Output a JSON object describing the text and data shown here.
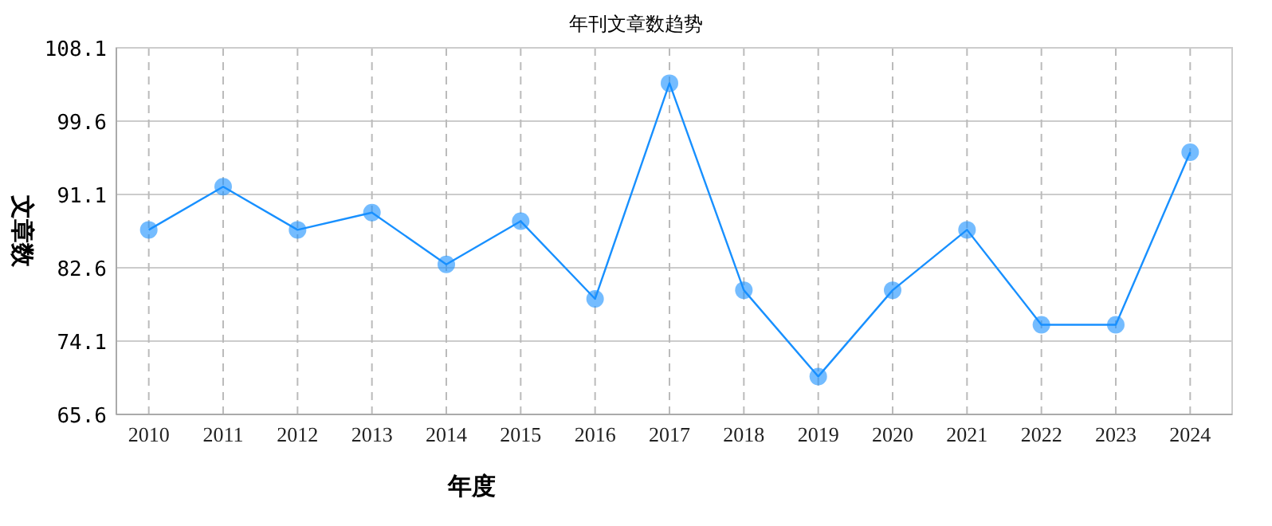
{
  "chart_data": {
    "type": "line",
    "title": "年刊文章数趋势",
    "xlabel": "年度",
    "ylabel": "文章数",
    "categories": [
      "2010",
      "2011",
      "2012",
      "2013",
      "2014",
      "2015",
      "2016",
      "2017",
      "2018",
      "2019",
      "2020",
      "2021",
      "2022",
      "2023",
      "2024"
    ],
    "series": [
      {
        "color": "#1890ff",
        "values": [
          87,
          92,
          87,
          89,
          83,
          88,
          79,
          104,
          80,
          70,
          80,
          87,
          76,
          76,
          96
        ]
      }
    ],
    "ylim": [
      65.6,
      108.1
    ],
    "yticks": [
      65.6,
      74.1,
      82.6,
      91.1,
      99.6,
      108.1
    ],
    "grid": true,
    "marker": "circle",
    "line_style": "solid"
  }
}
